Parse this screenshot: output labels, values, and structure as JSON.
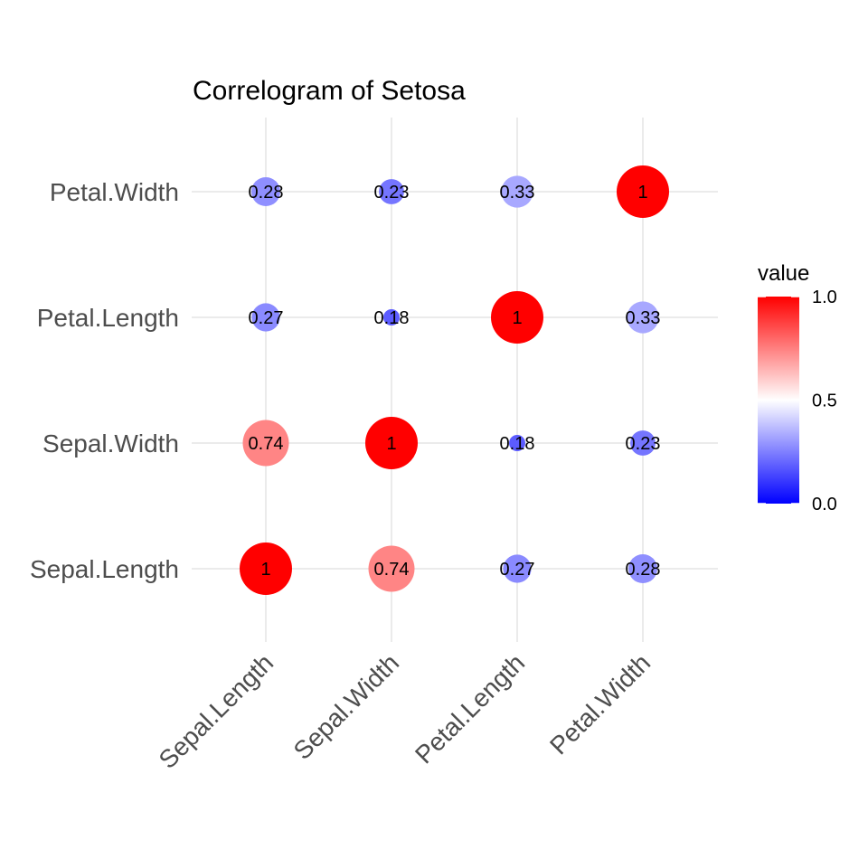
{
  "chart_data": {
    "type": "correlogram",
    "title": "Correlogram of Setosa",
    "x_categories": [
      "Sepal.Length",
      "Sepal.Width",
      "Petal.Length",
      "Petal.Width"
    ],
    "y_categories": [
      "Sepal.Length",
      "Sepal.Width",
      "Petal.Length",
      "Petal.Width"
    ],
    "cells": [
      {
        "x": "Sepal.Length",
        "y": "Sepal.Length",
        "value": 1.0,
        "label": "1"
      },
      {
        "x": "Sepal.Width",
        "y": "Sepal.Length",
        "value": 0.74,
        "label": "0.74"
      },
      {
        "x": "Petal.Length",
        "y": "Sepal.Length",
        "value": 0.27,
        "label": "0.27"
      },
      {
        "x": "Petal.Width",
        "y": "Sepal.Length",
        "value": 0.28,
        "label": "0.28"
      },
      {
        "x": "Sepal.Length",
        "y": "Sepal.Width",
        "value": 0.74,
        "label": "0.74"
      },
      {
        "x": "Sepal.Width",
        "y": "Sepal.Width",
        "value": 1.0,
        "label": "1"
      },
      {
        "x": "Petal.Length",
        "y": "Sepal.Width",
        "value": 0.18,
        "label": "0.18"
      },
      {
        "x": "Petal.Width",
        "y": "Sepal.Width",
        "value": 0.23,
        "label": "0.23"
      },
      {
        "x": "Sepal.Length",
        "y": "Petal.Length",
        "value": 0.27,
        "label": "0.27"
      },
      {
        "x": "Sepal.Width",
        "y": "Petal.Length",
        "value": 0.18,
        "label": "0.18"
      },
      {
        "x": "Petal.Length",
        "y": "Petal.Length",
        "value": 1.0,
        "label": "1"
      },
      {
        "x": "Petal.Width",
        "y": "Petal.Length",
        "value": 0.33,
        "label": "0.33"
      },
      {
        "x": "Sepal.Length",
        "y": "Petal.Width",
        "value": 0.28,
        "label": "0.28"
      },
      {
        "x": "Sepal.Width",
        "y": "Petal.Width",
        "value": 0.23,
        "label": "0.23"
      },
      {
        "x": "Petal.Length",
        "y": "Petal.Width",
        "value": 0.33,
        "label": "0.33"
      },
      {
        "x": "Petal.Width",
        "y": "Petal.Width",
        "value": 1.0,
        "label": "1"
      }
    ],
    "legend": {
      "title": "value",
      "ticks": [
        "1.0",
        "0.5",
        "0.0"
      ],
      "range": [
        0,
        1
      ],
      "colors": {
        "low": "#0000ff",
        "mid": "#ffffff",
        "high": "#ff0000"
      },
      "placement": "right"
    },
    "grid": true
  }
}
